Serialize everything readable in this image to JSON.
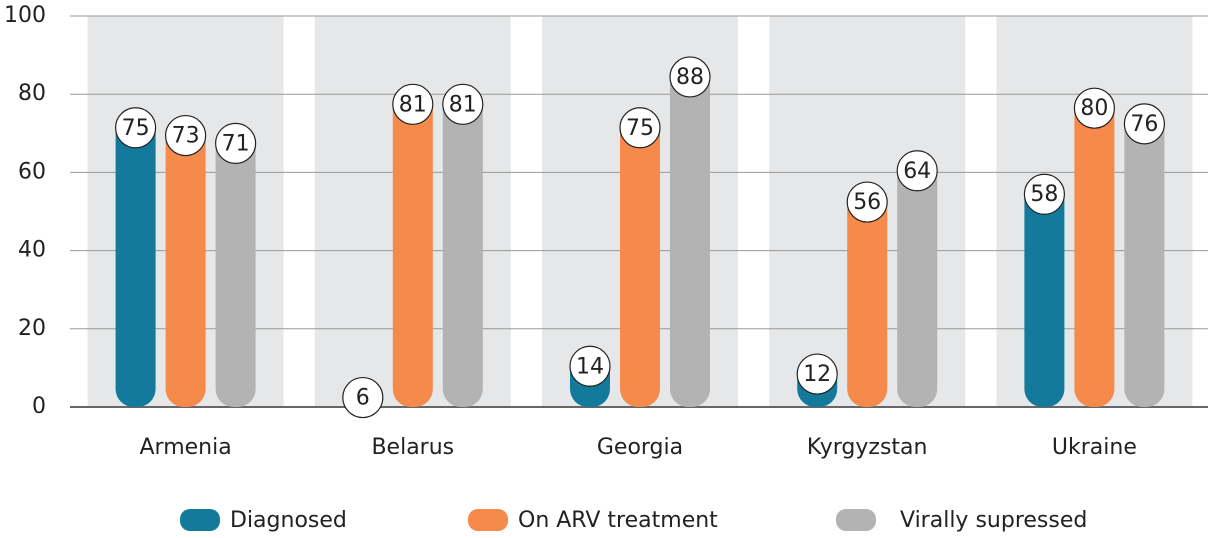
{
  "chart_data": {
    "type": "bar",
    "categories": [
      "Armenia",
      "Belarus",
      "Georgia",
      "Kyrgyzstan",
      "Ukraine"
    ],
    "series": [
      {
        "name": "Diagnosed",
        "color": "#137a9c",
        "values": [
          75,
          6,
          14,
          12,
          58
        ]
      },
      {
        "name": "On ARV treatment",
        "color": "#f58a4b",
        "values": [
          73,
          81,
          75,
          56,
          80
        ]
      },
      {
        "name": "Virally supressed",
        "color": "#b3b3b3",
        "values": [
          71,
          81,
          88,
          64,
          76
        ]
      }
    ],
    "ylim": [
      0,
      100
    ],
    "yticks": [
      0,
      20,
      40,
      60,
      80,
      100
    ],
    "grid": true
  }
}
